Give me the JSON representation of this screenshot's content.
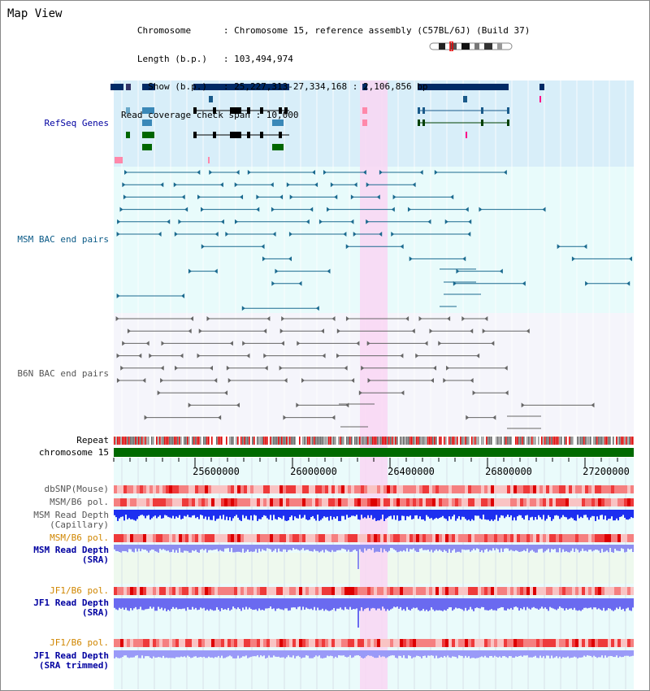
{
  "header": {
    "title": "Map View",
    "info_lines": [
      "   Chromosome      : Chromosome 15, reference assembly (C57BL/6J) (Build 37)",
      "   Length (b.p.)   : 103,494,974",
      "     Show (b.p.)   : 25,227,313-27,334,168 : 2,106,856 bp",
      "Read coverage check span : 10,000"
    ]
  },
  "tracks": {
    "refseq": "RefSeq Genes",
    "msm_bac": "MSM BAC end pairs",
    "b6n_bac": "B6N BAC end pairs",
    "repeat": "Repeat",
    "chromosome": "chromosome 15",
    "dbsnp": "dbSNP(Mouse)",
    "msm_b6_pol_1": "MSM/B6 pol.",
    "msm_read_depth_cap": "MSM Read Depth\n(Capillary)",
    "msm_b6_pol_2": "MSM/B6 pol.",
    "msm_read_depth_sra": "MSM Read Depth\n(SRA)",
    "jf1_b6_pol_1": "JF1/B6 pol.",
    "jf1_read_depth_sra": "JF1 Read Depth\n(SRA)",
    "jf1_b6_pol_2": "JF1/B6 pol.",
    "jf1_read_depth_trim": "JF1 Read Depth\n(SRA trimmed)"
  },
  "axis": {
    "ticks": [
      "25600000",
      "26000000",
      "26400000",
      "26800000",
      "27200000"
    ]
  },
  "colors": {
    "highlight": "#f9d6f3",
    "refseq_bg": "#d8eef9",
    "msm_bg": "#e8fbfb",
    "b6n_bg": "#f5f5fb",
    "gene_dark": "#002a66",
    "chromosome": "#006a00"
  }
}
